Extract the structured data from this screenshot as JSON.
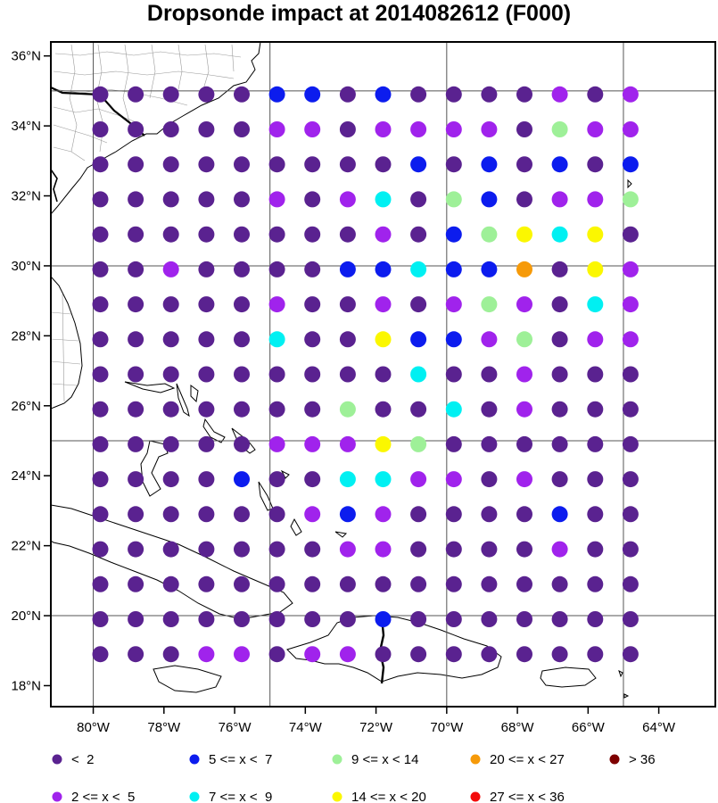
{
  "title": "Dropsonde impact at 2014082612 (F000)",
  "lon_ticks": [
    {
      "lon": -80,
      "label": "80°W"
    },
    {
      "lon": -78,
      "label": "78°W"
    },
    {
      "lon": -76,
      "label": "76°W"
    },
    {
      "lon": -74,
      "label": "74°W"
    },
    {
      "lon": -72,
      "label": "72°W"
    },
    {
      "lon": -70,
      "label": "70°W"
    },
    {
      "lon": -68,
      "label": "68°W"
    },
    {
      "lon": -66,
      "label": "66°W"
    },
    {
      "lon": -64,
      "label": "64°W"
    }
  ],
  "lat_ticks": [
    {
      "lat": 36,
      "label": "36°N"
    },
    {
      "lat": 34,
      "label": "34°N"
    },
    {
      "lat": 32,
      "label": "32°N"
    },
    {
      "lat": 30,
      "label": "30°N"
    },
    {
      "lat": 28,
      "label": "28°N"
    },
    {
      "lat": 26,
      "label": "26°N"
    },
    {
      "lat": 24,
      "label": "24°N"
    },
    {
      "lat": 22,
      "label": "22°N"
    },
    {
      "lat": 20,
      "label": "20°N"
    },
    {
      "lat": 18,
      "label": "18°N"
    }
  ],
  "lon_range": [
    -81.2,
    -62.4
  ],
  "lat_range": [
    17.4,
    36.4
  ],
  "grid_lons": [
    -80,
    -75,
    -70,
    -65
  ],
  "grid_lats": [
    35,
    30,
    25,
    20
  ],
  "points_lon_start": -79.8,
  "points_lat_start": 34.9,
  "points_step": -1,
  "categories": [
    {
      "label": "<  2",
      "color": "#5a2290"
    },
    {
      "label": "2 <= x <  5",
      "color": "#a023ec"
    },
    {
      "label": "5 <= x <  7",
      "color": "#0c1cee"
    },
    {
      "label": "7 <= x <  9",
      "color": "#00f0f2"
    },
    {
      "label": "9 <= x < 14",
      "color": "#9ef098"
    },
    {
      "label": "14 <= x < 20",
      "color": "#fbf700"
    },
    {
      "label": "20 <= x < 27",
      "color": "#f69a09"
    },
    {
      "label": "27 <= x < 36",
      "color": "#f30b0b"
    },
    {
      "label": "> 36",
      "color": "#7e0000"
    }
  ],
  "grid_values": [
    "0000022020000101",
    "0000011011110411",
    "0000000002020202",
    "0000010130420114",
    "0000000010245350",
    "0010000223226051",
    "0000010010141031",
    "0000030052214011",
    "0000000003001000",
    "0000000400301000",
    "0000011154000000",
    "0000200331101000",
    "0000001210000200",
    "0000000110000100",
    "0000000000000000",
    "0000000020000000",
    "0001101100000000"
  ]
}
